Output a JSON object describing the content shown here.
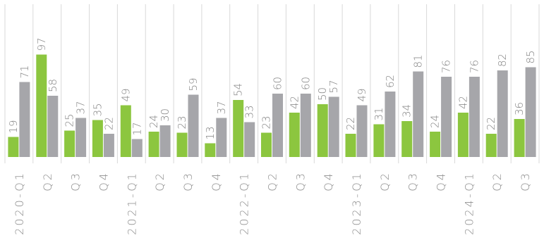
{
  "chart_data": {
    "type": "bar",
    "categories": [
      "2020-Q1",
      "Q2",
      "Q3",
      "Q4",
      "2021-Q1",
      "Q2",
      "Q3",
      "Q4",
      "2022-Q1",
      "Q2",
      "Q3",
      "Q4",
      "2023-Q1",
      "Q2",
      "Q3",
      "Q4",
      "2024-Q1",
      "Q2",
      "Q3"
    ],
    "series": [
      {
        "values": [
          19,
          97,
          25,
          35,
          49,
          24,
          23,
          13,
          54,
          23,
          42,
          50,
          22,
          31,
          34,
          24,
          42,
          22,
          36
        ],
        "color": "#8cc63f"
      },
      {
        "values": [
          71,
          58,
          37,
          22,
          17,
          30,
          59,
          37,
          33,
          60,
          60,
          57,
          49,
          62,
          81,
          76,
          76,
          82,
          85
        ],
        "color": "#a6a6aa"
      }
    ],
    "ylim": [
      0,
      100
    ],
    "grid": "vertical",
    "legend": "none",
    "title": "",
    "xlabel": "",
    "ylabel": ""
  }
}
